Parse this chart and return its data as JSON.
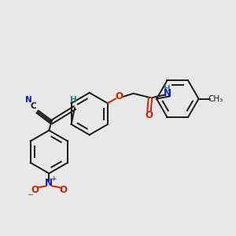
{
  "background_color": "#e8e8e8",
  "bond_color": "#1a1a1a",
  "N_color": "#1414cc",
  "O_color": "#cc2200",
  "H_color": "#2a8080",
  "figsize": [
    3.0,
    3.0
  ],
  "dpi": 100,
  "xlim": [
    0,
    10
  ],
  "ylim": [
    0,
    10
  ]
}
